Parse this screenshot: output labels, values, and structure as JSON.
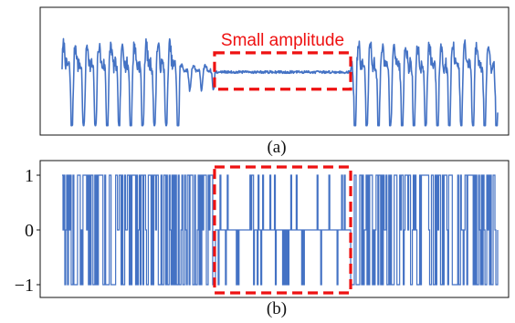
{
  "colors": {
    "signal": "#4472c4",
    "highlight": "#ee1111"
  },
  "chart_data": [
    {
      "panel": "(a)",
      "type": "line",
      "caption": "(a)",
      "title": "",
      "xlabel": "",
      "ylabel": "",
      "grid": false,
      "axes_visible": false,
      "xlim": [
        0,
        480
      ],
      "ylim": [
        -1.3,
        1.3
      ],
      "annotation": {
        "text": "Small amplitude",
        "x_range": [
          168,
          318
        ],
        "y_range": [
          -0.4,
          0.45
        ]
      },
      "series": [
        {
          "style": "oscillating waveform, large amplitude at both ends, near-flat small amplitude in the middle",
          "segments": [
            {
              "x_range": [
                0,
                130
              ],
              "amplitude": 1.0,
              "period": 13
            },
            {
              "x_range": [
                130,
                168
              ],
              "amplitude": 0.25,
              "period": 13
            },
            {
              "x_range": [
                168,
                318
              ],
              "amplitude": 0.03,
              "period": 13
            },
            {
              "x_range": [
                318,
                480
              ],
              "amplitude": 1.0,
              "period": 13
            }
          ]
        }
      ]
    },
    {
      "panel": "(b)",
      "type": "line",
      "caption": "(b)",
      "title": "",
      "xlabel": "",
      "ylabel": "",
      "grid": false,
      "xlim": [
        0,
        480
      ],
      "ylim": [
        -1.1,
        1.1
      ],
      "yticks": [
        {
          "value": 1,
          "label": "1"
        },
        {
          "value": 0,
          "label": "0"
        },
        {
          "value": -1,
          "label": "−1"
        }
      ],
      "annotation": {
        "x_range": [
          168,
          318
        ],
        "y_range": [
          -1.15,
          1.15
        ]
      },
      "series": [
        {
          "style": "ternary sequence switching between -1, 0 and 1",
          "levels": [
            -1,
            0,
            1
          ],
          "segments": [
            {
              "x_range": [
                0,
                168
              ],
              "density": "dense switching between 1 and -1"
            },
            {
              "x_range": [
                168,
                318
              ],
              "density": "sparse switching with long runs at 0"
            },
            {
              "x_range": [
                318,
                480
              ],
              "density": "dense switching between 1 and -1"
            }
          ]
        }
      ]
    }
  ]
}
